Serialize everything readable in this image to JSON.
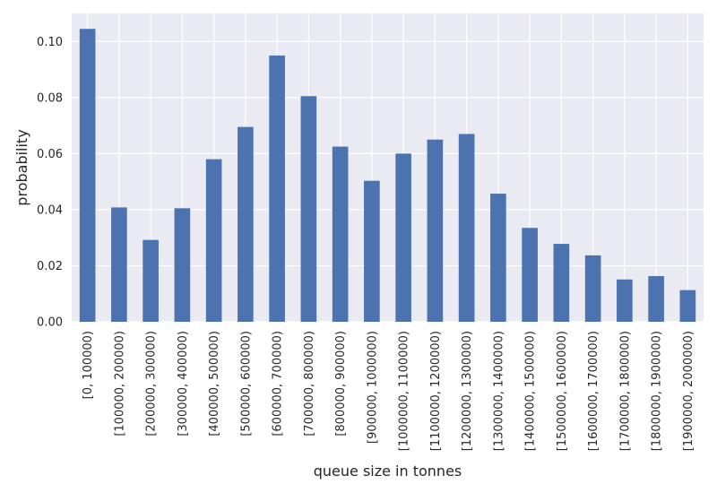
{
  "chart_data": {
    "type": "bar",
    "title": "",
    "xlabel": "queue size in tonnes",
    "ylabel": "probability",
    "ylim": [
      0,
      0.11
    ],
    "yticks": [
      0.0,
      0.02,
      0.04,
      0.06,
      0.08,
      0.1
    ],
    "ytick_labels": [
      "0.00",
      "0.02",
      "0.04",
      "0.06",
      "0.08",
      "0.10"
    ],
    "grid": true,
    "legend": "none",
    "categories": [
      "[0, 100000)",
      "[100000, 200000)",
      "[200000, 300000)",
      "[300000, 400000)",
      "[400000, 500000)",
      "[500000, 600000)",
      "[600000, 700000)",
      "[700000, 800000)",
      "[800000, 900000)",
      "[900000, 1000000)",
      "[1000000, 1100000)",
      "[1100000, 1200000)",
      "[1200000, 1300000)",
      "[1300000, 1400000)",
      "[1400000, 1500000)",
      "[1500000, 1600000)",
      "[1600000, 1700000)",
      "[1700000, 1800000)",
      "[1800000, 1900000)",
      "[1900000, 2000000)"
    ],
    "values": [
      0.1045,
      0.0408,
      0.0292,
      0.0405,
      0.058,
      0.0695,
      0.095,
      0.0805,
      0.0625,
      0.0503,
      0.06,
      0.065,
      0.067,
      0.0457,
      0.0335,
      0.0278,
      0.0237,
      0.0151,
      0.0163,
      0.0113
    ],
    "colors": {
      "bar": "#4c72b0",
      "plot_background": "#eaeaf2",
      "grid": "#ffffff"
    }
  }
}
